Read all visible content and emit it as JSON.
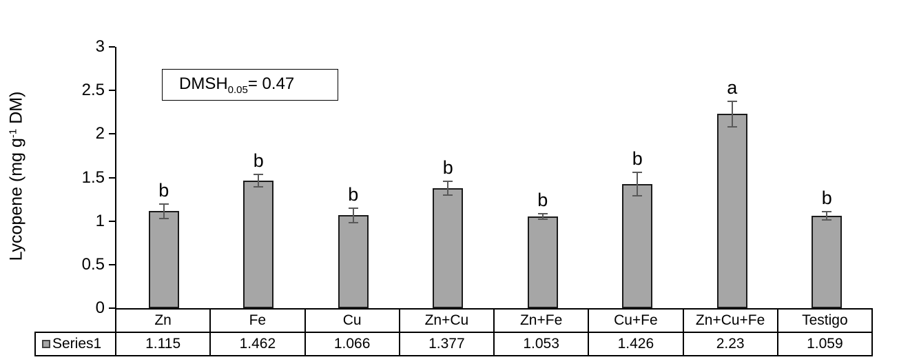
{
  "chart_data": {
    "type": "bar",
    "title": "",
    "xlabel": "",
    "ylabel": "Lycopene (mg g-1 DM)",
    "ylabel_parts": {
      "prefix": "Lycopene (mg g",
      "superscript": "-1",
      "suffix": " DM)"
    },
    "categories": [
      "Zn",
      "Fe",
      "Cu",
      "Zn+Cu",
      "Zn+Fe",
      "Cu+Fe",
      "Zn+Cu+Fe",
      "Testigo"
    ],
    "series": [
      {
        "name": "Series1",
        "values": [
          1.115,
          1.462,
          1.066,
          1.377,
          1.053,
          1.426,
          2.23,
          1.059
        ]
      }
    ],
    "error_bars": [
      0.09,
      0.08,
      0.09,
      0.09,
      0.04,
      0.145,
      0.155,
      0.055
    ],
    "significance_letters": [
      "b",
      "b",
      "b",
      "b",
      "b",
      "b",
      "a",
      "b"
    ],
    "ylim": [
      0,
      3
    ],
    "yticks": [
      0,
      0.5,
      1,
      1.5,
      2,
      2.5,
      3
    ],
    "ytick_labels": [
      "0",
      "0.5",
      "1",
      "1.5",
      "2",
      "2.5",
      "3"
    ],
    "grid": false,
    "legend_position": "bottom-table-left",
    "annotation": {
      "prefix": "DMSH",
      "subscript": "0.05",
      "rest": "= 0.47"
    },
    "colors": {
      "bar_fill": "#a6a6a6",
      "bar_border": "#1a1a1a",
      "error_bar": "#595959",
      "axis": "#000000",
      "table_border": "#000000",
      "background": "#ffffff",
      "text": "#000000"
    }
  }
}
